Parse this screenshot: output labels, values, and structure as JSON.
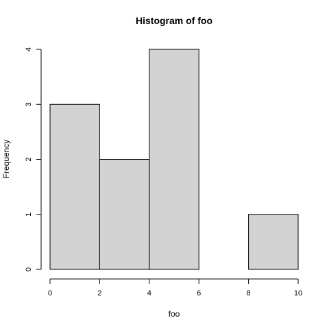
{
  "chart_data": {
    "type": "bar",
    "title": "Histogram of foo",
    "xlabel": "foo",
    "ylabel": "Frequency",
    "bins": [
      {
        "x0": 0,
        "x1": 2,
        "value": 3
      },
      {
        "x0": 2,
        "x1": 4,
        "value": 2
      },
      {
        "x0": 4,
        "x1": 6,
        "value": 4
      },
      {
        "x0": 6,
        "x1": 8,
        "value": 0
      },
      {
        "x0": 8,
        "x1": 10,
        "value": 1
      }
    ],
    "xlim": [
      0,
      10
    ],
    "ylim": [
      0,
      4
    ],
    "x_ticks": [
      "0",
      "2",
      "4",
      "6",
      "8",
      "10"
    ],
    "y_ticks": [
      "0",
      "1",
      "2",
      "3",
      "4"
    ],
    "grid": false,
    "bar_fill": "#d3d3d3",
    "bar_stroke": "#000000"
  }
}
